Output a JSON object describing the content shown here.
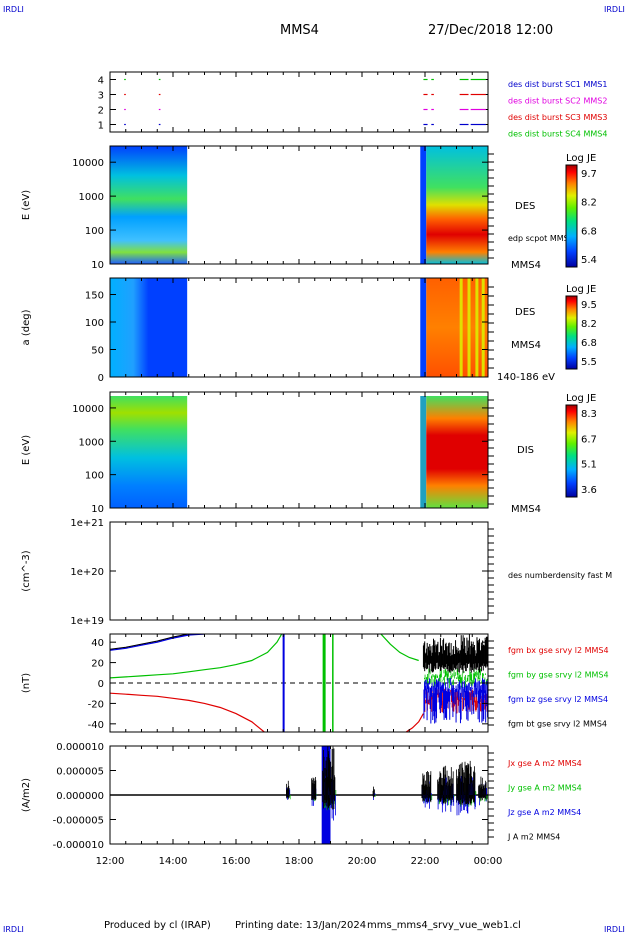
{
  "header": {
    "corner_tl": "IRDLI",
    "corner_tr": "IRDLI",
    "corner_bl": "IRDLI",
    "corner_br": "IRDLI",
    "spacecraft": "MMS4",
    "date_time": "27/Dec/2018 12:00"
  },
  "footer": {
    "produced_by": "Produced by cl (IRAP)",
    "printing_date": "Printing date: 13/Jan/2024",
    "file": "mms_mms4_srvy_vue_web1.cl"
  },
  "colors": {
    "black": "#000000",
    "red": "#e00000",
    "green": "#00c000",
    "blue": "#0000e0",
    "magenta": "#e000e0",
    "legend_blue": "#0000cc"
  },
  "chart_data": [
    {
      "id": "burst",
      "type": "scatter",
      "yticks": [
        "1",
        "2",
        "3",
        "4"
      ],
      "ylim": [
        0.5,
        4.5
      ],
      "xlim_hours": [
        12,
        24
      ],
      "legend": [
        {
          "text": "des dist burst SC1 MMS1",
          "color": "#0000cc"
        },
        {
          "text": "des dist burst SC2 MMS2",
          "color": "#e000e0"
        },
        {
          "text": "des dist burst SC3 MMS3",
          "color": "#e00000"
        },
        {
          "text": "des dist burst SC4 MMS4",
          "color": "#00c000"
        }
      ],
      "segments": [
        {
          "level": 4,
          "color": "#00c000",
          "ranges": [
            [
              12.45,
              12.47
            ],
            [
              13.55,
              13.57
            ],
            [
              21.95,
              22.05
            ],
            [
              22.2,
              22.25
            ],
            [
              23.1,
              23.35
            ],
            [
              23.45,
              23.9
            ]
          ]
        },
        {
          "level": 3,
          "color": "#e00000",
          "ranges": [
            [
              12.45,
              12.47
            ],
            [
              13.55,
              13.57
            ],
            [
              21.95,
              22.05
            ],
            [
              22.2,
              22.25
            ],
            [
              23.1,
              23.35
            ],
            [
              23.45,
              23.9
            ]
          ]
        },
        {
          "level": 2,
          "color": "#e000e0",
          "ranges": [
            [
              12.45,
              12.47
            ],
            [
              13.55,
              13.57
            ],
            [
              21.95,
              22.05
            ],
            [
              22.2,
              22.25
            ],
            [
              23.1,
              23.35
            ],
            [
              23.45,
              23.9
            ]
          ]
        },
        {
          "level": 1,
          "color": "#0000cc",
          "ranges": [
            [
              12.45,
              12.47
            ],
            [
              13.55,
              13.57
            ],
            [
              21.95,
              22.05
            ],
            [
              22.2,
              22.25
            ],
            [
              23.1,
              23.35
            ],
            [
              23.45,
              23.9
            ]
          ]
        }
      ]
    },
    {
      "id": "des_energy",
      "type": "heatmap",
      "ylabel": "E (eV)",
      "yscale": "log",
      "ylim": [
        10,
        30000
      ],
      "yticks": [
        "10",
        "100",
        "1000",
        "10000"
      ],
      "label_species": "DES",
      "label_extra": "edp scpot MMS4",
      "label_sc": "MMS4",
      "colorbar": {
        "title": "Log JE",
        "ticks": [
          "9.7",
          "8.2",
          "6.8",
          "5.4"
        ]
      },
      "data_ranges_hours": [
        [
          12.0,
          14.45
        ],
        [
          21.85,
          24.0
        ]
      ]
    },
    {
      "id": "des_pitch",
      "type": "heatmap",
      "ylabel": "a (deg)",
      "ylim": [
        0,
        180
      ],
      "yticks": [
        "0",
        "50",
        "100",
        "150"
      ],
      "label_species": "DES",
      "label_sc": "MMS4",
      "label_energy": "140-186 eV",
      "colorbar": {
        "title": "Log JE",
        "ticks": [
          "9.5",
          "8.2",
          "6.8",
          "5.5"
        ]
      },
      "data_ranges_hours": [
        [
          12.0,
          14.45
        ],
        [
          21.85,
          24.0
        ]
      ]
    },
    {
      "id": "dis_energy",
      "type": "heatmap",
      "ylabel": "E (eV)",
      "yscale": "log",
      "ylim": [
        10,
        30000
      ],
      "yticks": [
        "10",
        "100",
        "1000",
        "10000"
      ],
      "label_species": "DIS",
      "label_sc": "MMS4",
      "colorbar": {
        "title": "Log JE",
        "ticks": [
          "8.3",
          "6.7",
          "5.1",
          "3.6"
        ]
      },
      "data_ranges_hours": [
        [
          12.0,
          14.45
        ],
        [
          21.85,
          24.0
        ]
      ]
    },
    {
      "id": "density",
      "type": "line",
      "ylabel": "(cm^-3)",
      "yscale": "log",
      "yticks": [
        "1e+19",
        "1e+20",
        "1e+21"
      ],
      "legend": [
        {
          "text": "des numberdensity fast M",
          "color": "#000000"
        }
      ]
    },
    {
      "id": "fgm",
      "type": "line",
      "ylabel": "(nT)",
      "ylim": [
        -48,
        48
      ],
      "yticks": [
        "-40",
        "-20",
        "0",
        "20",
        "40"
      ],
      "legend": [
        {
          "text": "fgm bx gse srvy l2 MMS4",
          "color": "#e00000"
        },
        {
          "text": "fgm by gse srvy l2 MMS4",
          "color": "#00c000"
        },
        {
          "text": "fgm bz gse srvy l2 MMS4",
          "color": "#0000e0"
        },
        {
          "text": "fgm bt gse srvy l2 MMS4",
          "color": "#000000"
        }
      ],
      "series": [
        {
          "name": "fgm bt gse srvy l2 MMS4",
          "color": "#000000",
          "x": [
            12.0,
            12.5,
            13.0,
            13.5,
            14.0,
            14.5,
            15.0
          ],
          "y": [
            33,
            35,
            38,
            41,
            45,
            48,
            48
          ]
        },
        {
          "name": "fgm bz gse srvy l2 MMS4",
          "color": "#0000e0",
          "x": [
            12.0,
            12.5,
            13.0,
            13.5,
            14.0,
            14.5,
            15.0
          ],
          "y": [
            32,
            34,
            37,
            40,
            44,
            47,
            48
          ]
        },
        {
          "name": "fgm by gse srvy l2 MMS4",
          "color": "#00c000",
          "x": [
            12.0,
            12.5,
            13.0,
            13.5,
            14.0,
            14.5,
            15.0,
            15.5,
            16.0,
            16.5,
            17.0,
            17.3,
            17.45
          ],
          "y": [
            5,
            6,
            7,
            8,
            9,
            11,
            13,
            15,
            18,
            22,
            30,
            40,
            48
          ]
        },
        {
          "name": "fgm bx gse srvy l2 MMS4",
          "color": "#e00000",
          "x": [
            12.0,
            12.5,
            13.0,
            13.5,
            14.0,
            14.5,
            15.0,
            15.5,
            16.0,
            16.5,
            16.9
          ],
          "y": [
            -10,
            -11,
            -12,
            -13,
            -15,
            -17,
            -20,
            -24,
            -30,
            -38,
            -48
          ]
        },
        {
          "name": "fgm by gse srvy l2 MMS4",
          "color": "#00c000",
          "x": [
            20.6,
            20.9,
            21.2,
            21.5,
            21.8
          ],
          "y": [
            48,
            38,
            30,
            25,
            22
          ]
        },
        {
          "name": "fgm bx gse srvy l2 MMS4",
          "color": "#e00000",
          "x": [
            21.4,
            21.6,
            21.8,
            21.95
          ],
          "y": [
            -48,
            -44,
            -38,
            -30
          ]
        }
      ]
    },
    {
      "id": "current",
      "type": "line",
      "ylabel": "(A/m2)",
      "ylim": [
        -1e-05,
        1e-05
      ],
      "yticks": [
        "-0.000010",
        "-0.000005",
        "0.000000",
        "0.000005",
        "0.000010"
      ],
      "legend": [
        {
          "text": "Jx gse A m2 MMS4",
          "color": "#e00000"
        },
        {
          "text": "Jy gse A m2 MMS4",
          "color": "#00c000"
        },
        {
          "text": "Jz gse A m2 MMS4",
          "color": "#0000e0"
        },
        {
          "text": "J A m2 MMS4",
          "color": "#000000"
        }
      ],
      "xticks": [
        "12:00",
        "14:00",
        "16:00",
        "18:00",
        "20:00",
        "22:00",
        "00:00"
      ],
      "xlim_hours": [
        12,
        24
      ]
    }
  ]
}
